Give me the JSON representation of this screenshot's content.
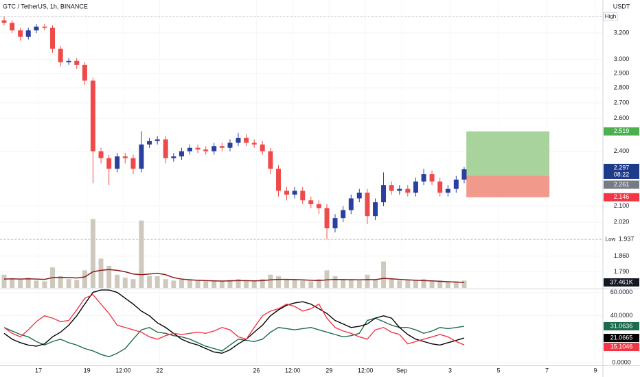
{
  "chart_data": {
    "type": "candlestick",
    "title": "GTC / TetherUS, 1h, BINANCE",
    "currency": "USDT",
    "x": [
      15.58,
      15.91,
      16.25,
      16.58,
      16.91,
      17.25,
      17.58,
      17.91,
      18.25,
      18.58,
      18.91,
      19.25,
      19.58,
      19.91,
      20.25,
      20.58,
      20.91,
      21.25,
      21.58,
      21.91,
      22.25,
      22.58,
      22.91,
      23.25,
      23.58,
      23.91,
      24.25,
      24.58,
      24.91,
      25.25,
      25.58,
      25.91,
      26.25,
      26.58,
      26.91,
      27.25,
      27.58,
      27.91,
      28.25,
      28.58,
      28.91,
      29.25,
      29.58,
      29.91,
      30.25,
      30.58,
      30.91,
      31.25,
      31.58,
      31.91,
      32.25,
      32.58,
      32.91,
      33.25,
      33.58,
      33.91,
      34.25,
      34.58
    ],
    "open": [
      3.3,
      3.28,
      3.22,
      3.17,
      3.22,
      3.25,
      3.24,
      3.08,
      2.98,
      2.99,
      2.96,
      2.85,
      2.4,
      2.36,
      2.3,
      2.37,
      2.36,
      2.3,
      2.44,
      2.46,
      2.47,
      2.36,
      2.37,
      2.4,
      2.42,
      2.41,
      2.4,
      2.43,
      2.42,
      2.45,
      2.48,
      2.45,
      2.44,
      2.4,
      2.3,
      2.18,
      2.16,
      2.18,
      2.13,
      2.11,
      2.09,
      1.99,
      2.04,
      2.08,
      2.14,
      2.17,
      2.05,
      2.12,
      2.21,
      2.18,
      2.19,
      2.17,
      2.23,
      2.27,
      2.23,
      2.17,
      2.19,
      2.24
    ],
    "high": [
      3.33,
      3.3,
      3.24,
      3.24,
      3.27,
      3.27,
      3.26,
      3.1,
      3.01,
      3.01,
      2.98,
      2.87,
      2.42,
      2.38,
      2.39,
      2.39,
      2.38,
      2.52,
      2.48,
      2.49,
      2.49,
      2.39,
      2.42,
      2.44,
      2.44,
      2.43,
      2.45,
      2.45,
      2.47,
      2.51,
      2.5,
      2.47,
      2.46,
      2.42,
      2.32,
      2.2,
      2.2,
      2.2,
      2.15,
      2.13,
      2.11,
      2.06,
      2.1,
      2.16,
      2.19,
      2.19,
      2.14,
      2.28,
      2.23,
      2.21,
      2.21,
      2.25,
      2.3,
      2.29,
      2.25,
      2.21,
      2.26,
      2.31
    ],
    "low": [
      3.26,
      3.2,
      3.14,
      3.15,
      3.2,
      3.22,
      3.05,
      2.95,
      2.96,
      2.93,
      2.82,
      2.22,
      2.33,
      2.21,
      2.28,
      2.33,
      2.27,
      2.28,
      2.42,
      2.44,
      2.33,
      2.34,
      2.35,
      2.38,
      2.39,
      2.38,
      2.38,
      2.4,
      2.4,
      2.43,
      2.43,
      2.42,
      2.38,
      2.27,
      2.15,
      2.13,
      2.14,
      2.11,
      2.09,
      2.06,
      1.937,
      1.97,
      2.02,
      2.06,
      2.12,
      2.01,
      2.03,
      2.1,
      2.16,
      2.16,
      2.15,
      2.15,
      2.21,
      2.21,
      2.15,
      2.15,
      2.17,
      2.22
    ],
    "close": [
      3.28,
      3.22,
      3.17,
      3.22,
      3.25,
      3.24,
      3.08,
      2.98,
      2.99,
      2.96,
      2.85,
      2.4,
      2.36,
      2.3,
      2.37,
      2.36,
      2.3,
      2.44,
      2.46,
      2.47,
      2.36,
      2.37,
      2.4,
      2.42,
      2.41,
      2.4,
      2.43,
      2.42,
      2.45,
      2.48,
      2.45,
      2.44,
      2.4,
      2.3,
      2.18,
      2.16,
      2.18,
      2.13,
      2.11,
      2.09,
      1.99,
      2.04,
      2.08,
      2.14,
      2.17,
      2.05,
      2.12,
      2.21,
      2.18,
      2.19,
      2.17,
      2.23,
      2.27,
      2.23,
      2.17,
      2.19,
      2.24,
      2.297
    ],
    "up_color": "#2a3f9e",
    "down_color": "#ef4a4a",
    "xlim": [
      15.41,
      40.31
    ],
    "xticks": [
      17,
      19,
      {
        "value": 20.5,
        "label": "12:00"
      },
      22,
      26,
      {
        "value": 27.5,
        "label": "12:00"
      },
      29,
      {
        "value": 30.5,
        "label": "12:00"
      },
      {
        "value": 32,
        "label": "Sep"
      },
      {
        "value": 34,
        "label": "3"
      },
      {
        "value": 36,
        "label": "5"
      },
      {
        "value": 38,
        "label": "7"
      },
      {
        "value": 40,
        "label": "9"
      }
    ],
    "ylim": [
      1.7215,
      3.467
    ],
    "log": true,
    "yticks": [
      {
        "value": 3.2,
        "label": "3.200"
      },
      {
        "value": 3.0,
        "label": "3.000"
      },
      {
        "value": 2.9,
        "label": "2.900"
      },
      {
        "value": 2.8,
        "label": "2.800"
      },
      {
        "value": 2.7,
        "label": "2.700"
      },
      {
        "value": 2.6,
        "label": "2.600"
      },
      {
        "value": 2.4,
        "label": "2.400"
      },
      {
        "value": 2.1,
        "label": "2.100"
      },
      {
        "value": 2.02,
        "label": "2.020"
      },
      {
        "value": 1.86,
        "label": "1.860"
      },
      {
        "value": 1.79,
        "label": "1.790"
      }
    ],
    "high_label": "High",
    "low_label": "Low",
    "countdown": "08:22",
    "position": {
      "entry": 2.261,
      "target": 2.519,
      "stop": 2.146,
      "x": [
        34.67,
        38.1
      ],
      "profit_color": "#a9d39c",
      "loss_color": "#f19a8b"
    },
    "volume": {
      "values": [
        90000,
        60000,
        55000,
        70000,
        50000,
        45000,
        140000,
        80000,
        60000,
        55000,
        120000,
        470000,
        200000,
        150000,
        90000,
        70000,
        60000,
        460000,
        80000,
        80000,
        60000,
        50000,
        55000,
        60000,
        50000,
        45000,
        50000,
        45000,
        55000,
        60000,
        50000,
        45000,
        60000,
        90000,
        80000,
        60000,
        55000,
        50000,
        45000,
        60000,
        120000,
        80000,
        60000,
        55000,
        50000,
        90000,
        60000,
        180000,
        60000,
        50000,
        55000,
        50000,
        60000,
        45000,
        50000,
        40000,
        45000,
        50000
      ],
      "ma": [
        60000,
        62000,
        60000,
        62000,
        60000,
        58000,
        70000,
        72000,
        70000,
        68000,
        75000,
        110000,
        120000,
        125000,
        120000,
        110000,
        95000,
        90000,
        95000,
        100000,
        90000,
        70000,
        60000,
        55000,
        52000,
        50000,
        48000,
        47000,
        48000,
        50000,
        50000,
        48000,
        50000,
        55000,
        58000,
        58000,
        57000,
        55000,
        52000,
        50000,
        55000,
        58000,
        57000,
        56000,
        55000,
        57000,
        56000,
        65000,
        62000,
        58000,
        55000,
        52000,
        50000,
        48000,
        45000,
        42000,
        40000,
        37461
      ],
      "ma_label": "37.461K",
      "ylim": [
        0,
        468000
      ],
      "color": "#cfc9bd",
      "ma_color": "#8a1c1c"
    },
    "oscillator": {
      "ylim": [
        0,
        62.3
      ],
      "yticks": [
        {
          "value": 60,
          "label": "60.0000"
        },
        {
          "value": 40,
          "label": "40.0000"
        },
        {
          "value": 0,
          "label": "0.0000"
        }
      ],
      "series": [
        {
          "color": "#1c6b4c",
          "values": [
            30,
            27,
            24,
            22,
            18,
            15,
            18,
            20,
            17,
            15,
            12,
            10,
            7,
            5,
            8,
            12,
            20,
            28,
            30,
            26,
            25,
            23,
            22,
            20,
            17,
            14,
            12,
            10,
            15,
            20,
            19,
            18,
            20,
            26,
            30,
            29,
            28,
            29,
            30,
            28,
            26,
            24,
            22,
            23,
            25,
            36,
            38,
            35,
            32,
            30,
            30,
            28,
            25,
            27,
            30,
            29,
            30,
            31.0636
          ]
        },
        {
          "color": "#000000",
          "values": [
            25,
            20,
            17,
            15,
            14,
            16,
            22,
            26,
            32,
            40,
            50,
            60,
            62,
            62,
            60,
            55,
            50,
            44,
            40,
            34,
            30,
            25,
            20,
            17,
            15,
            12,
            9,
            8,
            11,
            16,
            20,
            26,
            32,
            40,
            45,
            49,
            51,
            52,
            50,
            46,
            42,
            36,
            33,
            30,
            31,
            33,
            38,
            40,
            38,
            30,
            24,
            20,
            18,
            16,
            15,
            17,
            19,
            21.0665
          ]
        },
        {
          "color": "#f23645",
          "values": [
            30,
            25,
            22,
            28,
            35,
            40,
            38,
            35,
            36,
            45,
            55,
            58,
            50,
            42,
            32,
            30,
            28,
            26,
            22,
            20,
            23,
            25,
            24,
            25,
            26,
            25,
            27,
            30,
            28,
            22,
            20,
            30,
            40,
            44,
            46,
            50,
            48,
            44,
            46,
            50,
            38,
            30,
            27,
            25,
            22,
            20,
            28,
            30,
            26,
            24,
            16,
            18,
            20,
            22,
            24,
            22,
            18,
            15.1046
          ]
        }
      ]
    }
  }
}
